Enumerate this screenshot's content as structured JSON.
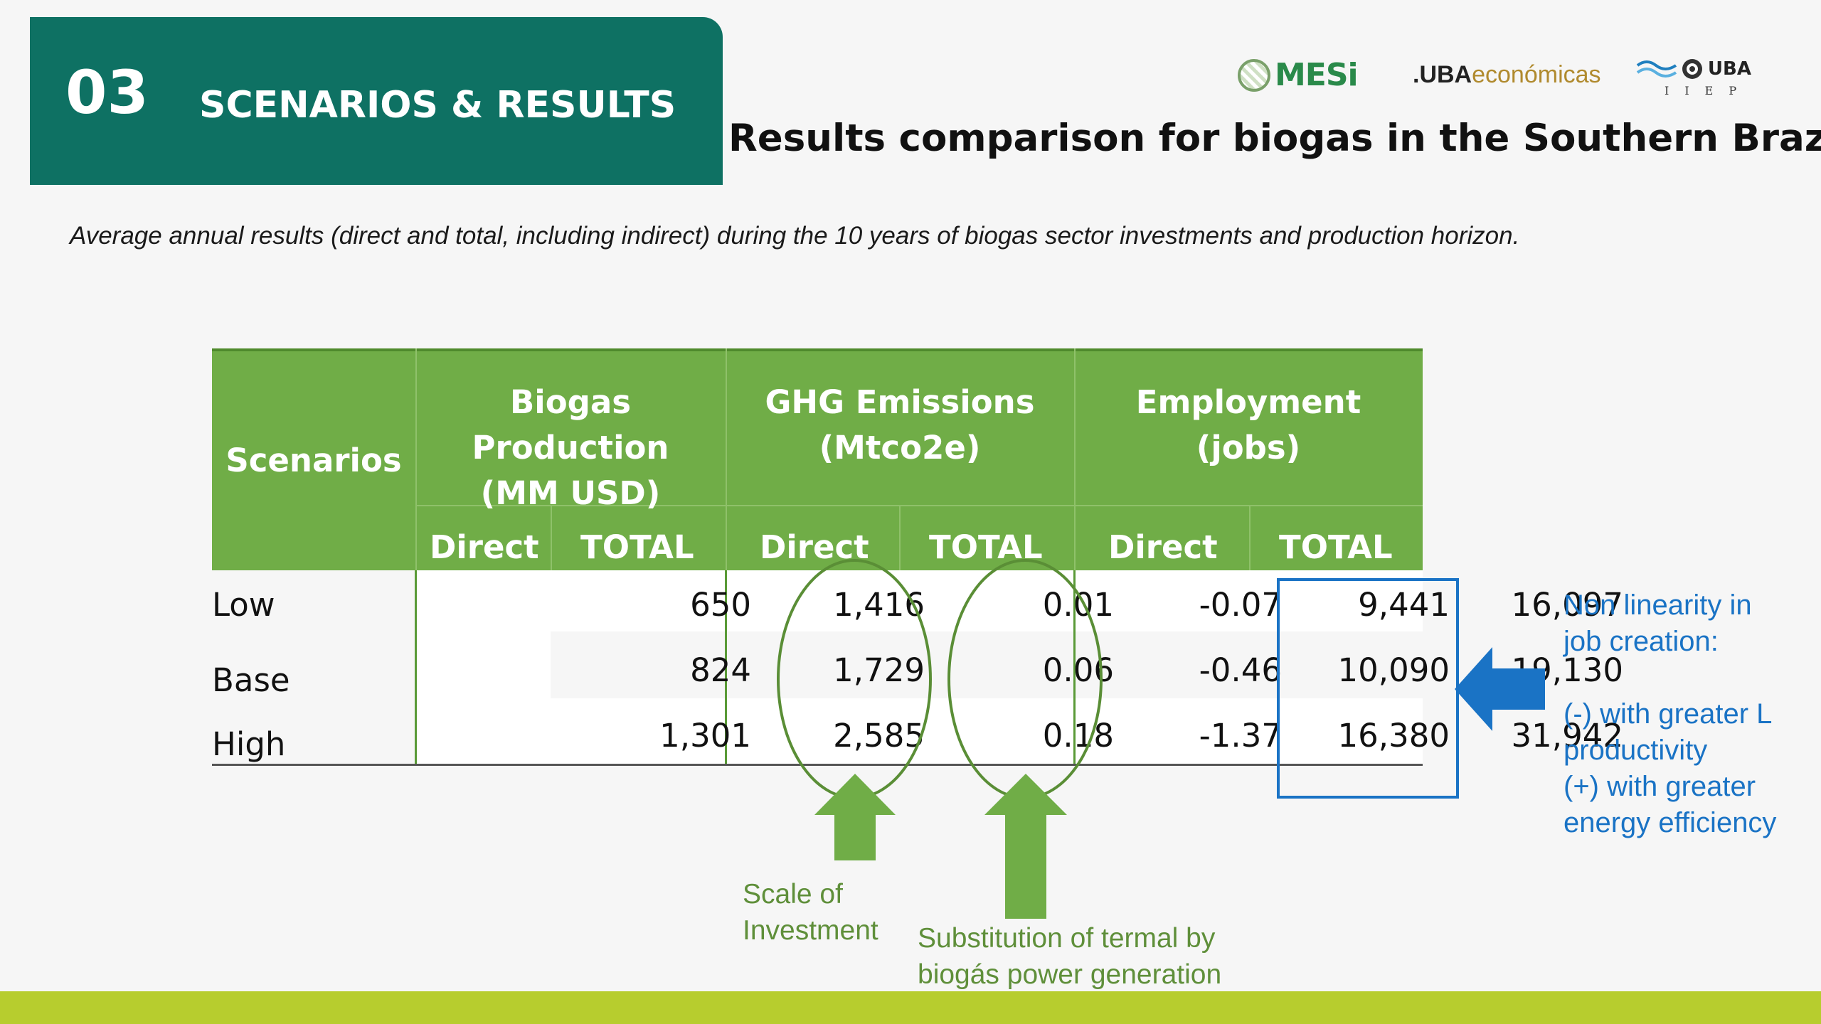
{
  "section": {
    "number": "03",
    "title": "SCENARIOS & RESULTS"
  },
  "logos": {
    "mesi": "MESi",
    "uba_economicas_prefix": ".UBA",
    "uba_economicas_suffix": "económicas",
    "uba": "UBA",
    "iiep": "IIEP"
  },
  "title": "Results comparison for biogas in the Southern Brazil",
  "subtitle": "Average annual results (direct and total, including indirect) during the 10 years of biogas sector investments and production horizon.",
  "table": {
    "scenarios_header": "Scenarios",
    "groups": [
      {
        "line1": "Biogas Production",
        "line2": "(MM USD)"
      },
      {
        "line1": "GHG Emissions",
        "line2": "(Mtco2e)"
      },
      {
        "line1": "Employment",
        "line2": "(jobs)"
      }
    ],
    "subheaders": [
      "Direct",
      "TOTAL",
      "Direct",
      "TOTAL",
      "Direct",
      "TOTAL"
    ],
    "rows": [
      {
        "label": "Low",
        "values": [
          "650",
          "1,416",
          "0.01",
          "-0.07",
          "9,441",
          "16,097"
        ]
      },
      {
        "label": "Base",
        "values": [
          "824",
          "1,729",
          "0.06",
          "-0.46",
          "10,090",
          "19,130"
        ]
      },
      {
        "label": "High",
        "values": [
          "1,301",
          "2,585",
          "0.18",
          "-1.37",
          "16,380",
          "31,942"
        ]
      }
    ]
  },
  "annotations": {
    "scale": [
      "Scale of",
      "Investment"
    ],
    "substitution": [
      "Substitution of termal by",
      "biogás power generation"
    ],
    "nonlinearity": [
      "Non linearity in",
      "job creation:",
      "",
      "(-) with greater L",
      "productivity",
      "(+) with greater",
      "energy efficiency"
    ]
  },
  "colors": {
    "section_bg": "#0e7163",
    "table_header": "#70ad47",
    "annotation_green": "#6aa43a",
    "annotation_blue": "#1a73c5",
    "bottom_bar": "#b7cd2e"
  }
}
